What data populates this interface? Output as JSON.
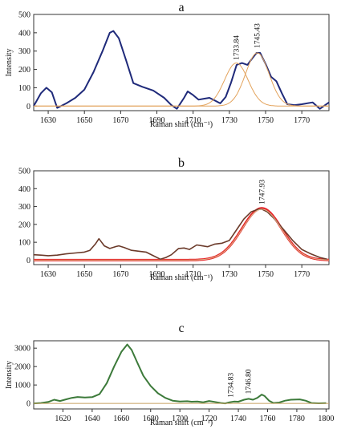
{
  "chart_data": [
    {
      "panel_label": "a",
      "type": "line",
      "xlabel": "Raman shift (cm⁻¹)",
      "ylabel": "Intensity",
      "xlim": [
        1622,
        1785
      ],
      "ylim": [
        -25,
        500
      ],
      "xticks": [
        1630,
        1650,
        1670,
        1690,
        1710,
        1730,
        1750,
        1770
      ],
      "yticks": [
        0,
        100,
        200,
        300,
        400,
        500
      ],
      "grid": false,
      "series": [
        {
          "role": "spectrum",
          "color": "#1f2a7a",
          "width": 2,
          "points": [
            [
              1622,
              0
            ],
            [
              1626,
              70
            ],
            [
              1629,
              100
            ],
            [
              1632,
              75
            ],
            [
              1635,
              -10
            ],
            [
              1640,
              15
            ],
            [
              1645,
              45
            ],
            [
              1650,
              90
            ],
            [
              1655,
              185
            ],
            [
              1660,
              300
            ],
            [
              1664,
              400
            ],
            [
              1666,
              410
            ],
            [
              1669,
              370
            ],
            [
              1673,
              250
            ],
            [
              1677,
              125
            ],
            [
              1682,
              105
            ],
            [
              1688,
              85
            ],
            [
              1694,
              45
            ],
            [
              1698,
              5
            ],
            [
              1701,
              -15
            ],
            [
              1705,
              45
            ],
            [
              1707,
              80
            ],
            [
              1710,
              60
            ],
            [
              1713,
              35
            ],
            [
              1716,
              40
            ],
            [
              1719,
              45
            ],
            [
              1722,
              30
            ],
            [
              1725,
              15
            ],
            [
              1728,
              50
            ],
            [
              1731,
              130
            ],
            [
              1734,
              225
            ],
            [
              1737,
              235
            ],
            [
              1740,
              225
            ],
            [
              1743,
              265
            ],
            [
              1745,
              290
            ],
            [
              1747,
              290
            ],
            [
              1750,
              230
            ],
            [
              1753,
              160
            ],
            [
              1756,
              135
            ],
            [
              1759,
              70
            ],
            [
              1762,
              10
            ],
            [
              1766,
              5
            ],
            [
              1770,
              10
            ],
            [
              1776,
              20
            ],
            [
              1780,
              -15
            ],
            [
              1785,
              20
            ]
          ]
        },
        {
          "role": "fit-component",
          "color": "#e3a35c",
          "width": 1,
          "gaussian": {
            "center": 1733.84,
            "height": 235,
            "sigma": 6.5
          }
        },
        {
          "role": "fit-component",
          "color": "#e3a35c",
          "width": 1,
          "gaussian": {
            "center": 1745.43,
            "height": 290,
            "sigma": 6.5
          }
        }
      ],
      "annotations": [
        {
          "text": "1733.84",
          "x": 1733.84
        },
        {
          "text": "1745.43",
          "x": 1745.43
        }
      ]
    },
    {
      "panel_label": "b",
      "type": "line",
      "xlabel": "Raman shift (cm⁻¹)",
      "ylabel": "",
      "xlim": [
        1622,
        1785
      ],
      "ylim": [
        -25,
        500
      ],
      "xticks": [
        1630,
        1650,
        1670,
        1690,
        1710,
        1730,
        1750,
        1770
      ],
      "yticks": [
        0,
        100,
        200,
        300,
        400,
        500
      ],
      "grid": false,
      "series": [
        {
          "role": "fit-envelope",
          "color": "#e8232a",
          "width": 3,
          "gaussian": {
            "center": 1747.93,
            "height": 290,
            "sigma": 11
          }
        },
        {
          "role": "spectrum",
          "color": "#6b3a2a",
          "width": 1.6,
          "points": [
            [
              1622,
              30
            ],
            [
              1626,
              28
            ],
            [
              1630,
              25
            ],
            [
              1635,
              28
            ],
            [
              1640,
              35
            ],
            [
              1645,
              40
            ],
            [
              1650,
              45
            ],
            [
              1653,
              55
            ],
            [
              1656,
              90
            ],
            [
              1658,
              120
            ],
            [
              1661,
              80
            ],
            [
              1664,
              65
            ],
            [
              1667,
              75
            ],
            [
              1669,
              80
            ],
            [
              1672,
              70
            ],
            [
              1676,
              55
            ],
            [
              1680,
              50
            ],
            [
              1684,
              45
            ],
            [
              1688,
              25
            ],
            [
              1692,
              5
            ],
            [
              1695,
              15
            ],
            [
              1698,
              30
            ],
            [
              1702,
              65
            ],
            [
              1705,
              68
            ],
            [
              1708,
              60
            ],
            [
              1712,
              85
            ],
            [
              1715,
              80
            ],
            [
              1718,
              75
            ],
            [
              1722,
              90
            ],
            [
              1726,
              95
            ],
            [
              1730,
              110
            ],
            [
              1734,
              170
            ],
            [
              1738,
              230
            ],
            [
              1742,
              270
            ],
            [
              1746,
              285
            ],
            [
              1748,
              285
            ],
            [
              1751,
              270
            ],
            [
              1755,
              230
            ],
            [
              1760,
              170
            ],
            [
              1765,
              110
            ],
            [
              1770,
              60
            ],
            [
              1775,
              35
            ],
            [
              1780,
              15
            ],
            [
              1784,
              5
            ]
          ]
        },
        {
          "role": "fit-component",
          "color": "#d9b98a",
          "width": 1,
          "gaussian": {
            "center": 1747.93,
            "height": 285,
            "sigma": 11
          }
        }
      ],
      "annotations": [
        {
          "text": "1747.93",
          "x": 1747.93
        }
      ]
    },
    {
      "panel_label": "c",
      "type": "line",
      "xlabel": "Raman shift (cm⁻¹)",
      "ylabel": "Intensity",
      "xlim": [
        1600,
        1802
      ],
      "ylim": [
        -300,
        3400
      ],
      "xticks": [
        1620,
        1640,
        1660,
        1680,
        1700,
        1720,
        1740,
        1760,
        1780,
        1800
      ],
      "yticks": [
        0,
        1000,
        2000,
        3000
      ],
      "grid": false,
      "series": [
        {
          "role": "spectrum",
          "color": "#3c7a3a",
          "width": 2,
          "points": [
            [
              1600,
              0
            ],
            [
              1605,
              20
            ],
            [
              1610,
              80
            ],
            [
              1614,
              200
            ],
            [
              1618,
              130
            ],
            [
              1622,
              220
            ],
            [
              1626,
              300
            ],
            [
              1630,
              350
            ],
            [
              1635,
              320
            ],
            [
              1640,
              340
            ],
            [
              1645,
              500
            ],
            [
              1650,
              1100
            ],
            [
              1655,
              2000
            ],
            [
              1660,
              2800
            ],
            [
              1664,
              3200
            ],
            [
              1667,
              2900
            ],
            [
              1671,
              2200
            ],
            [
              1675,
              1500
            ],
            [
              1680,
              950
            ],
            [
              1685,
              550
            ],
            [
              1690,
              300
            ],
            [
              1695,
              150
            ],
            [
              1700,
              100
            ],
            [
              1705,
              120
            ],
            [
              1708,
              90
            ],
            [
              1712,
              100
            ],
            [
              1716,
              60
            ],
            [
              1720,
              130
            ],
            [
              1724,
              80
            ],
            [
              1728,
              20
            ],
            [
              1731,
              0
            ],
            [
              1734,
              60
            ],
            [
              1737,
              100
            ],
            [
              1740,
              90
            ],
            [
              1744,
              200
            ],
            [
              1747,
              250
            ],
            [
              1750,
              200
            ],
            [
              1753,
              300
            ],
            [
              1756,
              480
            ],
            [
              1758,
              400
            ],
            [
              1761,
              150
            ],
            [
              1764,
              20
            ],
            [
              1768,
              50
            ],
            [
              1772,
              150
            ],
            [
              1776,
              200
            ],
            [
              1782,
              220
            ],
            [
              1786,
              150
            ],
            [
              1790,
              20
            ],
            [
              1795,
              5
            ],
            [
              1800,
              15
            ]
          ]
        },
        {
          "role": "baseline",
          "color": "#c8a062",
          "width": 1,
          "points": [
            [
              1600,
              0
            ],
            [
              1802,
              0
            ]
          ]
        }
      ],
      "annotations": [
        {
          "text": "1734.83",
          "x": 1734.83
        },
        {
          "text": "1746.80",
          "x": 1746.8
        }
      ]
    }
  ]
}
